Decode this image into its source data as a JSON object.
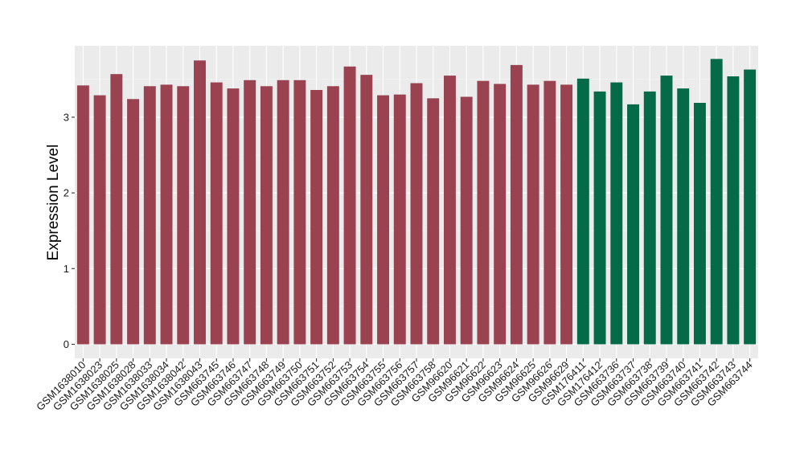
{
  "chart_data": {
    "type": "bar",
    "title": "",
    "xlabel": "",
    "ylabel": "Expression Level",
    "ylim": [
      0,
      3.9
    ],
    "yticks": [
      0,
      1,
      2,
      3
    ],
    "grid": true,
    "legend": "none",
    "categories": [
      "GSM1638010",
      "GSM1638023",
      "GSM1638025",
      "GSM1638028",
      "GSM1638033",
      "GSM1638034",
      "GSM1638042",
      "GSM1638043",
      "GSM663745",
      "GSM663746",
      "GSM663747",
      "GSM663748",
      "GSM663749",
      "GSM663750",
      "GSM663751",
      "GSM663752",
      "GSM663753",
      "GSM663754",
      "GSM663755",
      "GSM663756",
      "GSM663757",
      "GSM663758",
      "GSM96620",
      "GSM96621",
      "GSM96622",
      "GSM96623",
      "GSM96624",
      "GSM96625",
      "GSM96626",
      "GSM96629",
      "GSM176411",
      "GSM176412",
      "GSM663736",
      "GSM663737",
      "GSM663738",
      "GSM663739",
      "GSM663740",
      "GSM663741",
      "GSM663742",
      "GSM663743",
      "GSM663744"
    ],
    "values": [
      3.42,
      3.29,
      3.57,
      3.24,
      3.41,
      3.43,
      3.41,
      3.75,
      3.46,
      3.38,
      3.49,
      3.41,
      3.49,
      3.49,
      3.36,
      3.41,
      3.67,
      3.56,
      3.29,
      3.3,
      3.45,
      3.25,
      3.55,
      3.27,
      3.48,
      3.44,
      3.69,
      3.43,
      3.48,
      3.43,
      3.51,
      3.34,
      3.46,
      3.17,
      3.34,
      3.55,
      3.38,
      3.19,
      3.77,
      3.54,
      3.63
    ],
    "groups": [
      0,
      0,
      0,
      0,
      0,
      0,
      0,
      0,
      0,
      0,
      0,
      0,
      0,
      0,
      0,
      0,
      0,
      0,
      0,
      0,
      0,
      0,
      0,
      0,
      0,
      0,
      0,
      0,
      0,
      0,
      1,
      1,
      1,
      1,
      1,
      1,
      1,
      1,
      1,
      1,
      1
    ],
    "group_colors": [
      "#9a4250",
      "#056a47"
    ]
  }
}
